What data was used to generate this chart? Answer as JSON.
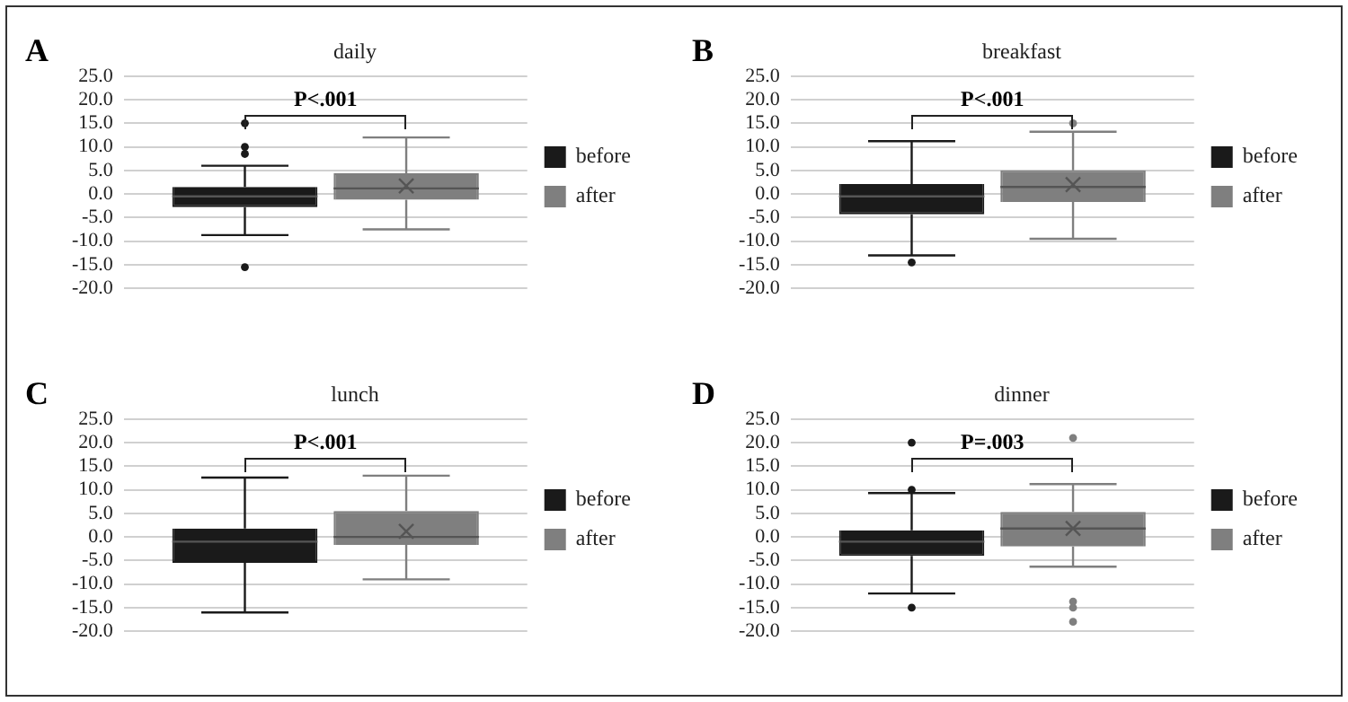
{
  "chart_data": [
    {
      "type": "box",
      "title": "daily",
      "categories": [
        null
      ],
      "annotations": [
        "A",
        "P<.001"
      ],
      "legend": "right",
      "grid": "y",
      "ylim": [
        -20,
        25
      ],
      "yticks": [
        {
          "value": -20,
          "label": "-20.0"
        },
        {
          "value": -15,
          "label": "-15.0"
        },
        {
          "value": -10,
          "label": "-10.0"
        },
        {
          "value": -5,
          "label": "-5.0"
        },
        {
          "value": 0,
          "label": "0.0"
        },
        {
          "value": 5,
          "label": "5.0"
        },
        {
          "value": 10,
          "label": "10.0"
        },
        {
          "value": 15,
          "label": "15.0"
        },
        {
          "value": 20,
          "label": "20.0"
        },
        {
          "value": 25,
          "label": "25.0"
        }
      ],
      "series": [
        {
          "name": "before",
          "color": "#1a1a1a",
          "boxes": [
            {
              "low": -8.7,
              "q1": -2.8,
              "median": -0.5,
              "q3": 1.5,
              "high": 6,
              "outliers": [
                15,
                10,
                8.5,
                -15.5
              ]
            }
          ]
        },
        {
          "name": "after",
          "color": "#7f7f7f",
          "boxes": [
            {
              "low": -7.5,
              "q1": -1.2,
              "median": 1.2,
              "q3": 4.4,
              "high": 12,
              "mean": 1.7
            }
          ]
        }
      ]
    },
    {
      "type": "box",
      "title": "breakfast",
      "categories": [
        null
      ],
      "annotations": [
        "B",
        "P<.001"
      ],
      "legend": "right",
      "grid": "y",
      "ylim": [
        -20,
        25
      ],
      "yticks": [
        {
          "value": -20,
          "label": "-20.0"
        },
        {
          "value": -15,
          "label": "-15.0"
        },
        {
          "value": -10,
          "label": "-10.0"
        },
        {
          "value": -5,
          "label": "-5.0"
        },
        {
          "value": 0,
          "label": "0.0"
        },
        {
          "value": 5,
          "label": "5.0"
        },
        {
          "value": 10,
          "label": "10.0"
        },
        {
          "value": 15,
          "label": "15.0"
        },
        {
          "value": 20,
          "label": "20.0"
        },
        {
          "value": 25,
          "label": "25.0"
        }
      ],
      "series": [
        {
          "name": "before",
          "color": "#1a1a1a",
          "boxes": [
            {
              "low": -13,
              "q1": -4.3,
              "median": -0.5,
              "q3": 2.1,
              "high": 11.2,
              "outliers": [
                -14.5
              ]
            }
          ]
        },
        {
          "name": "after",
          "color": "#7f7f7f",
          "boxes": [
            {
              "low": -9.5,
              "q1": -1.7,
              "median": 1.5,
              "q3": 5,
              "high": 13.2,
              "mean": 2,
              "outliers": [
                15
              ]
            }
          ]
        }
      ]
    },
    {
      "type": "box",
      "title": "lunch",
      "categories": [
        null
      ],
      "annotations": [
        "C",
        "P<.001"
      ],
      "legend": "right",
      "grid": "y",
      "ylim": [
        -20,
        25
      ],
      "yticks": [
        {
          "value": -20,
          "label": "-20.0"
        },
        {
          "value": -15,
          "label": "-15.0"
        },
        {
          "value": -10,
          "label": "-10.0"
        },
        {
          "value": -5,
          "label": "-5.0"
        },
        {
          "value": 0,
          "label": "0.0"
        },
        {
          "value": 5,
          "label": "5.0"
        },
        {
          "value": 10,
          "label": "10.0"
        },
        {
          "value": 15,
          "label": "15.0"
        },
        {
          "value": 20,
          "label": "20.0"
        },
        {
          "value": 25,
          "label": "25.0"
        }
      ],
      "series": [
        {
          "name": "before",
          "color": "#1a1a1a",
          "boxes": [
            {
              "low": -16,
              "q1": -5.5,
              "median": -1,
              "q3": 1.8,
              "high": 12.6
            }
          ]
        },
        {
          "name": "after",
          "color": "#7f7f7f",
          "boxes": [
            {
              "low": -9,
              "q1": -1.7,
              "median": 0,
              "q3": 5.5,
              "high": 13,
              "mean": 1.2
            }
          ]
        }
      ]
    },
    {
      "type": "box",
      "title": "dinner",
      "categories": [
        null
      ],
      "annotations": [
        "D",
        "P=.003"
      ],
      "legend": "right",
      "grid": "y",
      "ylim": [
        -20,
        25
      ],
      "yticks": [
        {
          "value": -20,
          "label": "-20.0"
        },
        {
          "value": -15,
          "label": "-15.0"
        },
        {
          "value": -10,
          "label": "-10.0"
        },
        {
          "value": -5,
          "label": "-5.0"
        },
        {
          "value": 0,
          "label": "0.0"
        },
        {
          "value": 5,
          "label": "5.0"
        },
        {
          "value": 10,
          "label": "10.0"
        },
        {
          "value": 15,
          "label": "15.0"
        },
        {
          "value": 20,
          "label": "20.0"
        },
        {
          "value": 25,
          "label": "25.0"
        }
      ],
      "series": [
        {
          "name": "before",
          "color": "#1a1a1a",
          "boxes": [
            {
              "low": -12,
              "q1": -4,
              "median": -1,
              "q3": 1.4,
              "high": 9.3,
              "outliers": [
                20,
                10,
                -15
              ]
            }
          ]
        },
        {
          "name": "after",
          "color": "#7f7f7f",
          "boxes": [
            {
              "low": -6.3,
              "q1": -2,
              "median": 1.8,
              "q3": 5.3,
              "high": 11.2,
              "mean": 1.8,
              "outliers": [
                21,
                -13.7,
                -15,
                -18
              ]
            }
          ]
        }
      ]
    }
  ]
}
